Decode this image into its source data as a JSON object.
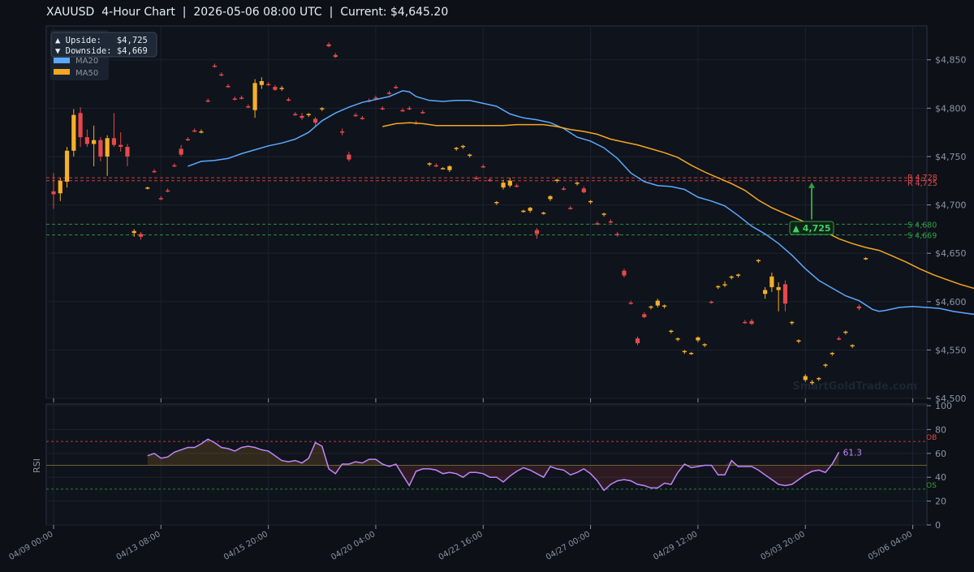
{
  "title": "XAUUSD  4-Hour Chart  |  2026-05-06 08:00 UTC  |  Current: $4,645.20",
  "colors": {
    "background": "#0d1117",
    "panel": "#0f131b",
    "grid": "#1b2230",
    "axis": "#8b949e",
    "bull": "#f5b027",
    "bear": "#e5484d",
    "ma20": "#5aa9ff",
    "ma50": "#f5a623",
    "rsi": "#c084fc",
    "resistance": "#e5484d",
    "support": "#2ea043",
    "watermark": "#1e2633"
  },
  "legend": {
    "upside_label": "▲ Upside:   $4,725",
    "downside_label": "▼ Downside: $4,669",
    "ma20": "MA20",
    "ma50": "MA50"
  },
  "watermark": "SmartGoldTrade.com",
  "chart_data": [
    {
      "type": "candlestick",
      "name": "price",
      "ylim": [
        4500,
        4885
      ],
      "y_ticks": [
        "$4,500",
        "$4,550",
        "$4,600",
        "$4,650",
        "$4,700",
        "$4,750",
        "$4,800",
        "$4,850"
      ],
      "x_tick_labels": [
        "04/09 00:00",
        "04/13 08:00",
        "04/15 20:00",
        "04/20 04:00",
        "04/22 16:00",
        "04/27 00:00",
        "04/29 12:00",
        "05/03 20:00",
        "05/06 04:00"
      ],
      "levels": [
        {
          "kind": "resistance",
          "label": "R 4,728",
          "value": 4728
        },
        {
          "kind": "resistance",
          "label": "R 4,725",
          "value": 4725
        },
        {
          "kind": "support",
          "label": "S 4,680",
          "value": 4680
        },
        {
          "kind": "support",
          "label": "S 4,669",
          "value": 4669
        }
      ],
      "target_annotation": {
        "label": "▲ 4,725",
        "value": 4725,
        "from": 4680
      },
      "ohlc": [
        [
          4714,
          4733,
          4696,
          4711
        ],
        [
          4712,
          4728,
          4704,
          4725
        ],
        [
          4724,
          4760,
          4718,
          4756
        ],
        [
          4756,
          4799,
          4750,
          4793
        ],
        [
          4795,
          4801,
          4760,
          4770
        ],
        [
          4770,
          4778,
          4760,
          4763
        ],
        [
          4763,
          4782,
          4740,
          4767
        ],
        [
          4767,
          4770,
          4745,
          4750
        ],
        [
          4750,
          4772,
          4730,
          4769
        ],
        [
          4769,
          4795,
          4760,
          4762
        ],
        [
          4762,
          4775,
          4755,
          4760
        ],
        [
          4760,
          4763,
          4740,
          4750
        ],
        [
          4671,
          4675,
          4667,
          4673
        ],
        [
          4670,
          4672,
          4664,
          4667
        ],
        [
          4717,
          4719,
          4716,
          4718
        ],
        [
          4735,
          4737,
          4733,
          4734
        ],
        [
          4707,
          4709,
          4705,
          4706
        ],
        [
          4715,
          4717,
          4713,
          4714
        ],
        [
          4741,
          4743,
          4739,
          4740
        ],
        [
          4758,
          4762,
          4750,
          4752
        ],
        [
          4768,
          4770,
          4766,
          4767
        ],
        [
          4777,
          4779,
          4775,
          4776
        ],
        [
          4775,
          4778,
          4774,
          4776
        ],
        [
          4808,
          4810,
          4806,
          4807
        ],
        [
          4844,
          4846,
          4842,
          4843
        ],
        [
          4835,
          4837,
          4833,
          4834
        ],
        [
          4823,
          4825,
          4821,
          4822
        ],
        [
          4810,
          4812,
          4808,
          4809
        ],
        [
          4811,
          4813,
          4809,
          4810
        ],
        [
          4802,
          4804,
          4800,
          4801
        ],
        [
          4798,
          4830,
          4790,
          4826
        ],
        [
          4824,
          4832,
          4820,
          4828
        ],
        [
          4825,
          4827,
          4823,
          4824
        ],
        [
          4822,
          4824,
          4818,
          4819
        ],
        [
          4820,
          4823,
          4818,
          4821
        ],
        [
          4809,
          4811,
          4807,
          4808
        ],
        [
          4794,
          4796,
          4792,
          4793
        ],
        [
          4792,
          4795,
          4788,
          4790
        ],
        [
          4793,
          4795,
          4791,
          4794
        ],
        [
          4789,
          4791,
          4782,
          4785
        ],
        [
          4799,
          4801,
          4797,
          4800
        ],
        [
          4866,
          4868,
          4863,
          4864
        ],
        [
          4855,
          4857,
          4852,
          4853
        ],
        [
          4776,
          4779,
          4772,
          4775
        ],
        [
          4752,
          4755,
          4745,
          4747
        ],
        [
          4793,
          4795,
          4791,
          4792
        ],
        [
          4790,
          4792,
          4788,
          4789
        ],
        [
          4808,
          4810,
          4806,
          4807
        ],
        [
          4811,
          4813,
          4809,
          4810
        ],
        [
          4800,
          4802,
          4798,
          4799
        ],
        [
          4816,
          4818,
          4814,
          4815
        ],
        [
          4822,
          4824,
          4820,
          4821
        ],
        [
          4798,
          4800,
          4796,
          4797
        ],
        [
          4800,
          4802,
          4798,
          4799
        ],
        [
          4785,
          4787,
          4783,
          4784
        ],
        [
          4796,
          4798,
          4794,
          4795
        ],
        [
          4742,
          4744,
          4740,
          4743
        ],
        [
          4741,
          4743,
          4739,
          4740
        ],
        [
          4738,
          4739,
          4737,
          4738
        ],
        [
          4736,
          4741,
          4734,
          4740
        ],
        [
          4758,
          4760,
          4756,
          4759
        ],
        [
          4760,
          4762,
          4758,
          4761
        ],
        [
          4751,
          4753,
          4749,
          4752
        ],
        [
          4728,
          4730,
          4726,
          4727
        ],
        [
          4740,
          4742,
          4738,
          4739
        ],
        [
          4726,
          4728,
          4724,
          4725
        ],
        [
          4702,
          4704,
          4700,
          4703
        ],
        [
          4718,
          4726,
          4716,
          4723
        ],
        [
          4720,
          4728,
          4718,
          4725
        ],
        [
          4720,
          4722,
          4718,
          4719
        ],
        [
          4693,
          4695,
          4692,
          4694
        ],
        [
          4694,
          4698,
          4692,
          4697
        ],
        [
          4674,
          4676,
          4665,
          4670
        ],
        [
          4691,
          4693,
          4690,
          4692
        ],
        [
          4706,
          4710,
          4704,
          4709
        ],
        [
          4725,
          4727,
          4723,
          4726
        ],
        [
          4717,
          4719,
          4715,
          4716
        ],
        [
          4697,
          4699,
          4695,
          4696
        ],
        [
          4722,
          4724,
          4720,
          4723
        ],
        [
          4717,
          4719,
          4712,
          4713
        ],
        [
          4703,
          4705,
          4701,
          4704
        ],
        [
          4681,
          4683,
          4679,
          4680
        ],
        [
          4690,
          4692,
          4688,
          4691
        ],
        [
          4683,
          4685,
          4681,
          4682
        ],
        [
          4670,
          4672,
          4667,
          4669
        ],
        [
          4632,
          4634,
          4625,
          4627
        ],
        [
          4599,
          4601,
          4597,
          4598
        ],
        [
          4562,
          4564,
          4555,
          4557
        ],
        [
          4587,
          4589,
          4583,
          4584
        ],
        [
          4594,
          4596,
          4592,
          4595
        ],
        [
          4596,
          4603,
          4594,
          4601
        ],
        [
          4595,
          4597,
          4593,
          4596
        ],
        [
          4569,
          4571,
          4567,
          4570
        ],
        [
          4561,
          4563,
          4559,
          4562
        ],
        [
          4548,
          4550,
          4546,
          4549
        ],
        [
          4546,
          4548,
          4545,
          4547
        ],
        [
          4560,
          4564,
          4558,
          4563
        ],
        [
          4555,
          4557,
          4553,
          4556
        ],
        [
          4600,
          4601,
          4598,
          4599
        ],
        [
          4615,
          4617,
          4613,
          4616
        ],
        [
          4617,
          4621,
          4615,
          4618
        ],
        [
          4625,
          4627,
          4623,
          4626
        ],
        [
          4627,
          4629,
          4625,
          4628
        ],
        [
          4579,
          4581,
          4577,
          4578
        ],
        [
          4580,
          4582,
          4576,
          4577
        ],
        [
          4642,
          4644,
          4640,
          4643
        ],
        [
          4608,
          4615,
          4603,
          4612
        ],
        [
          4615,
          4630,
          4610,
          4626
        ],
        [
          4612,
          4620,
          4590,
          4615
        ],
        [
          4618,
          4622,
          4590,
          4598
        ],
        [
          4578,
          4580,
          4576,
          4579
        ],
        [
          4559,
          4561,
          4557,
          4560
        ],
        [
          4519,
          4525,
          4517,
          4523
        ],
        [
          4516,
          4519,
          4514,
          4517
        ],
        [
          4520,
          4522,
          4518,
          4521
        ],
        [
          4534,
          4536,
          4532,
          4535
        ],
        [
          4546,
          4548,
          4544,
          4547
        ],
        [
          4562,
          4564,
          4560,
          4561
        ],
        [
          4568,
          4570,
          4566,
          4569
        ],
        [
          4554,
          4556,
          4552,
          4555
        ],
        [
          4595,
          4597,
          4591,
          4593
        ],
        [
          4644,
          4646,
          4643,
          4645
        ]
      ],
      "ma20": [
        [
          20,
          4740
        ],
        [
          22,
          4745
        ],
        [
          24,
          4746
        ],
        [
          26,
          4748
        ],
        [
          28,
          4753
        ],
        [
          30,
          4757
        ],
        [
          32,
          4761
        ],
        [
          34,
          4764
        ],
        [
          36,
          4768
        ],
        [
          38,
          4775
        ],
        [
          40,
          4787
        ],
        [
          42,
          4795
        ],
        [
          44,
          4801
        ],
        [
          46,
          4806
        ],
        [
          48,
          4809
        ],
        [
          50,
          4812
        ],
        [
          52,
          4818
        ],
        [
          53,
          4817
        ],
        [
          54,
          4812
        ],
        [
          56,
          4808
        ],
        [
          58,
          4807
        ],
        [
          60,
          4808
        ],
        [
          62,
          4808
        ],
        [
          64,
          4805
        ],
        [
          66,
          4802
        ],
        [
          68,
          4794
        ],
        [
          70,
          4790
        ],
        [
          72,
          4788
        ],
        [
          74,
          4785
        ],
        [
          76,
          4779
        ],
        [
          78,
          4770
        ],
        [
          80,
          4766
        ],
        [
          82,
          4759
        ],
        [
          84,
          4748
        ],
        [
          86,
          4733
        ],
        [
          88,
          4724
        ],
        [
          90,
          4720
        ],
        [
          92,
          4719
        ],
        [
          94,
          4716
        ],
        [
          96,
          4708
        ],
        [
          98,
          4704
        ],
        [
          100,
          4699
        ],
        [
          102,
          4689
        ],
        [
          104,
          4678
        ],
        [
          106,
          4670
        ],
        [
          108,
          4660
        ],
        [
          110,
          4648
        ],
        [
          112,
          4634
        ],
        [
          114,
          4622
        ],
        [
          116,
          4614
        ],
        [
          118,
          4606
        ],
        [
          120,
          4601
        ],
        [
          122,
          4592
        ],
        [
          123,
          4590
        ],
        [
          124,
          4591
        ],
        [
          126,
          4594
        ],
        [
          128,
          4595
        ],
        [
          130,
          4594
        ],
        [
          132,
          4593
        ],
        [
          134,
          4590
        ],
        [
          136,
          4588
        ],
        [
          138,
          4586
        ],
        [
          140,
          4583
        ],
        [
          142,
          4578
        ],
        [
          143,
          4577
        ],
        [
          144,
          4578
        ]
      ],
      "ma50": [
        [
          49,
          4781
        ],
        [
          51,
          4784
        ],
        [
          53,
          4785
        ],
        [
          55,
          4784
        ],
        [
          57,
          4782
        ],
        [
          59,
          4782
        ],
        [
          61,
          4782
        ],
        [
          63,
          4782
        ],
        [
          65,
          4782
        ],
        [
          67,
          4782
        ],
        [
          69,
          4783
        ],
        [
          71,
          4783
        ],
        [
          73,
          4783
        ],
        [
          75,
          4781
        ],
        [
          77,
          4778
        ],
        [
          79,
          4776
        ],
        [
          81,
          4773
        ],
        [
          83,
          4768
        ],
        [
          85,
          4765
        ],
        [
          87,
          4762
        ],
        [
          89,
          4758
        ],
        [
          91,
          4754
        ],
        [
          93,
          4749
        ],
        [
          95,
          4741
        ],
        [
          97,
          4734
        ],
        [
          99,
          4728
        ],
        [
          101,
          4722
        ],
        [
          103,
          4715
        ],
        [
          105,
          4705
        ],
        [
          107,
          4697
        ],
        [
          109,
          4691
        ],
        [
          111,
          4685
        ],
        [
          113,
          4679
        ],
        [
          115,
          4672
        ],
        [
          117,
          4665
        ],
        [
          119,
          4660
        ],
        [
          121,
          4656
        ],
        [
          123,
          4653
        ],
        [
          125,
          4647
        ],
        [
          127,
          4641
        ],
        [
          129,
          4634
        ],
        [
          131,
          4628
        ],
        [
          133,
          4623
        ],
        [
          135,
          4618
        ],
        [
          137,
          4614
        ],
        [
          139,
          4612
        ],
        [
          140,
          4612
        ]
      ]
    },
    {
      "type": "line",
      "name": "RSI",
      "ylabel": "RSI",
      "ylim": [
        0,
        100
      ],
      "y_ticks": [
        "0",
        "20",
        "40",
        "60",
        "80",
        "100"
      ],
      "overbought": {
        "label": "OB",
        "value": 70
      },
      "oversold": {
        "label": "OS",
        "value": 30
      },
      "last_label": "61.3",
      "rsi_start_index": 14,
      "values": [
        58,
        60,
        56,
        57,
        61,
        63,
        65,
        65,
        68,
        72,
        69,
        65,
        64,
        62,
        65,
        66,
        65,
        63,
        62,
        58,
        54,
        53,
        54,
        52,
        56,
        69,
        66,
        47,
        43,
        51,
        51,
        53,
        52,
        55,
        55,
        51,
        49,
        51,
        42,
        33,
        45,
        47,
        47,
        46,
        43,
        44,
        43,
        40,
        44,
        44,
        43,
        40,
        40,
        36,
        41,
        45,
        48,
        46,
        43,
        40,
        49,
        47,
        46,
        42,
        44,
        47,
        43,
        37,
        29,
        34,
        37,
        38,
        37,
        34,
        33,
        31,
        31,
        35,
        34,
        44,
        51,
        48,
        49,
        50,
        50,
        42,
        42,
        54,
        49,
        49,
        49,
        46,
        42,
        38,
        34,
        33,
        34,
        38,
        42,
        45,
        46,
        44,
        51,
        61
      ]
    }
  ]
}
